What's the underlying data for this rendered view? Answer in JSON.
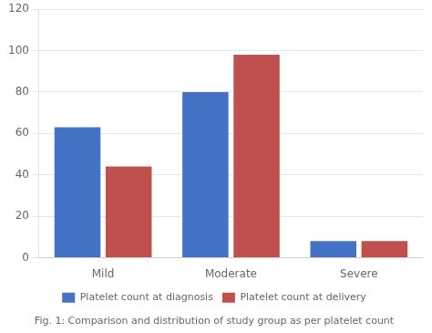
{
  "chart_data": {
    "type": "bar",
    "title": "Fig. 1: Comparison and distribution of study group as per platelet count",
    "categories": [
      "Mild",
      "Moderate",
      "Severe"
    ],
    "series": [
      {
        "name": "Platelet count at diagnosis",
        "color": "#4472C4",
        "values": [
          63,
          80,
          8
        ]
      },
      {
        "name": "Platelet count at delivery",
        "color": "#C0504D",
        "values": [
          44,
          98,
          8
        ]
      }
    ],
    "ylim": [
      0,
      120
    ],
    "yticks": [
      0,
      20,
      40,
      60,
      80,
      100,
      120
    ],
    "grid": true,
    "legend": "bottom"
  }
}
